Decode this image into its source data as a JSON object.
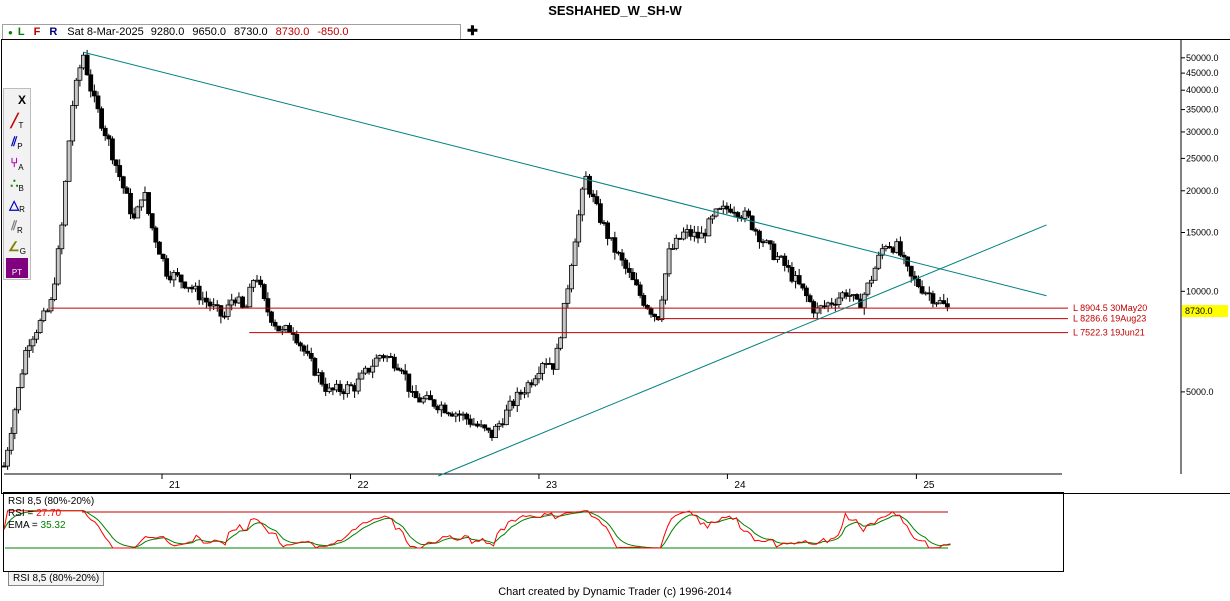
{
  "title": "SESHAHED_W_SH-W",
  "infobar": {
    "dot": "●",
    "L": "L",
    "F": "F",
    "R": "R",
    "date": "Sat 8-Mar-2025",
    "open": "9280.0",
    "high": "9650.0",
    "low": "8730.0",
    "close": "8730.0",
    "change": "-850.0",
    "plus": "✚"
  },
  "toolbar": {
    "close_label": "X",
    "tools": [
      {
        "name": "trendline-tool-icon",
        "label": "T",
        "glyph": "╱",
        "color": "#c00000"
      },
      {
        "name": "parallel-tool-icon",
        "label": "P",
        "glyph": "⫽",
        "color": "#0000c0"
      },
      {
        "name": "andrews-tool-icon",
        "label": "A",
        "glyph": "⑂",
        "color": "#c000c0"
      },
      {
        "name": "fib-tool-icon",
        "label": "B",
        "glyph": "∴",
        "color": "#008000"
      },
      {
        "name": "ratio-tool-icon",
        "label": "R",
        "glyph": "△",
        "color": "#0000c0"
      },
      {
        "name": "retrace-tool-icon",
        "label": "R",
        "glyph": "⫽",
        "color": "#808080"
      },
      {
        "name": "gann-tool-icon",
        "label": "G",
        "glyph": "∠",
        "color": "#808000"
      },
      {
        "name": "pt-tool-icon",
        "label": "PT",
        "glyph": "",
        "color": "#800080"
      }
    ]
  },
  "chart_data": {
    "type": "candlestick",
    "title": "SESHAHED_W_SH-W",
    "scale": "log",
    "ylim": [
      2800,
      55000
    ],
    "y_ticks": [
      {
        "value": 50000,
        "label": "50000.0"
      },
      {
        "value": 45000,
        "label": "45000.0"
      },
      {
        "value": 40000,
        "label": "40000.0"
      },
      {
        "value": 35000,
        "label": "35000.0"
      },
      {
        "value": 30000,
        "label": "30000.0"
      },
      {
        "value": 25000,
        "label": "25000.0"
      },
      {
        "value": 20000,
        "label": "20000.0"
      },
      {
        "value": 15000,
        "label": "15000.0"
      },
      {
        "value": 10000,
        "label": "10000.0"
      },
      {
        "value": 5000,
        "label": "5000.0"
      }
    ],
    "x_ticks": [
      {
        "year": 2021,
        "label": "21"
      },
      {
        "year": 2022,
        "label": "22"
      },
      {
        "year": 2023,
        "label": "23"
      },
      {
        "year": 2024,
        "label": "24"
      },
      {
        "year": 2025,
        "label": "25"
      }
    ],
    "price_path": [
      [
        "2020-03-01",
        3000
      ],
      [
        "2020-04-15",
        7000
      ],
      [
        "2020-05-30",
        9000
      ],
      [
        "2020-06-20",
        15000
      ],
      [
        "2020-07-10",
        35000
      ],
      [
        "2020-08-01",
        52000
      ],
      [
        "2020-08-20",
        38000
      ],
      [
        "2020-09-20",
        28000
      ],
      [
        "2020-10-20",
        20000
      ],
      [
        "2020-11-10",
        16000
      ],
      [
        "2020-11-25",
        20500
      ],
      [
        "2020-12-10",
        16000
      ],
      [
        "2021-01-10",
        11500
      ],
      [
        "2021-02-20",
        10500
      ],
      [
        "2021-04-01",
        9200
      ],
      [
        "2021-05-01",
        8300
      ],
      [
        "2021-05-20",
        9800
      ],
      [
        "2021-06-10",
        8600
      ],
      [
        "2021-07-01",
        11500
      ],
      [
        "2021-07-20",
        9000
      ],
      [
        "2021-08-20",
        7500
      ],
      [
        "2021-09-10",
        7800
      ],
      [
        "2021-10-10",
        6300
      ],
      [
        "2021-11-20",
        5000
      ],
      [
        "2022-01-10",
        5200
      ],
      [
        "2022-03-01",
        6500
      ],
      [
        "2022-04-10",
        6000
      ],
      [
        "2022-05-01",
        4800
      ],
      [
        "2022-06-20",
        4600
      ],
      [
        "2022-08-10",
        4200
      ],
      [
        "2022-10-01",
        3700
      ],
      [
        "2022-11-10",
        4600
      ],
      [
        "2022-12-20",
        5500
      ],
      [
        "2023-01-10",
        6300
      ],
      [
        "2023-02-01",
        6000
      ],
      [
        "2023-02-20",
        9000
      ],
      [
        "2023-03-10",
        14000
      ],
      [
        "2023-04-01",
        22000
      ],
      [
        "2023-04-20",
        18000
      ],
      [
        "2023-05-20",
        14000
      ],
      [
        "2023-06-20",
        11500
      ],
      [
        "2023-07-20",
        9500
      ],
      [
        "2023-08-19",
        8300
      ],
      [
        "2023-09-10",
        13000
      ],
      [
        "2023-10-10",
        15000
      ],
      [
        "2023-11-10",
        14500
      ],
      [
        "2023-12-10",
        17000
      ],
      [
        "2024-01-10",
        18000
      ],
      [
        "2024-02-10",
        16500
      ],
      [
        "2024-03-20",
        13500
      ],
      [
        "2024-04-20",
        12000
      ],
      [
        "2024-05-30",
        9800
      ],
      [
        "2024-06-20",
        8700
      ],
      [
        "2024-07-20",
        9300
      ],
      [
        "2024-08-20",
        10000
      ],
      [
        "2024-09-10",
        9000
      ],
      [
        "2024-10-01",
        10500
      ],
      [
        "2024-11-01",
        14000
      ],
      [
        "2024-11-25",
        13500
      ],
      [
        "2024-12-20",
        11000
      ],
      [
        "2025-01-20",
        10000
      ],
      [
        "2025-03-08",
        8730
      ]
    ],
    "trendlines": [
      {
        "name": "falling-trendline",
        "color": "#008080",
        "from": [
          "2020-08-01",
          52000
        ],
        "to": [
          "2025-09-10",
          9700
        ]
      },
      {
        "name": "rising-trendline",
        "color": "#008080",
        "from": [
          "2022-06-20",
          2800
        ],
        "to": [
          "2025-09-10",
          15800
        ]
      }
    ],
    "hlines": [
      {
        "name": "level-8904",
        "label": "L 8904.5 30May20",
        "value": 8904.5,
        "start": "2020-05-30",
        "color": "#c00000"
      },
      {
        "name": "level-8286",
        "label": "L 8286.6 19Aug23",
        "value": 8286.6,
        "start": "2023-08-19",
        "color": "#c00000"
      },
      {
        "name": "level-7522",
        "label": "L 7522.3 19Jun21",
        "value": 7522.3,
        "start": "2021-06-19",
        "color": "#c00000"
      }
    ],
    "last_price": {
      "value": 8730,
      "label": "8730.0",
      "color": "#ffff00"
    },
    "rsi": {
      "title": "RSI 8,5 (80%-20%)",
      "rsi_label": "RSI = ",
      "rsi_value": "27.70",
      "ema_label": "EMA = ",
      "ema_value": "35.32",
      "upper": 80,
      "lower": 20,
      "rsi_color": "#ff0000",
      "ema_color": "#008000",
      "tab_label": "RSI 8,5 (80%-20%)"
    }
  },
  "footer": "Chart created by Dynamic Trader  (c) 1996-2014"
}
